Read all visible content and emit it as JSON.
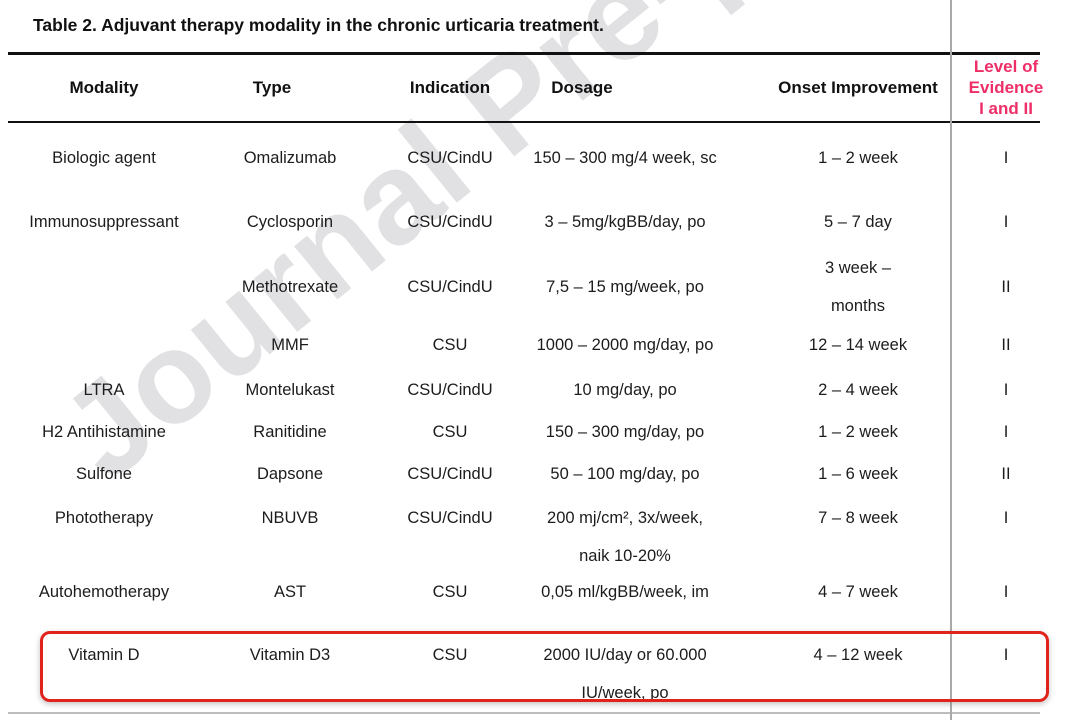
{
  "title": "Table 2. Adjuvant therapy modality in the chronic urticaria treatment.",
  "watermark": "Journal Pre-proof",
  "colors": {
    "accent_pink": "#EE2E67",
    "highlight_red": "#E0241B",
    "divider_gray": "#A9A9A9",
    "rule_black": "#111111",
    "watermark_gray": "#C9C9CE"
  },
  "columns": {
    "modality": "Modality",
    "type": "Type",
    "indication": "Indication",
    "dosage": "Dosage",
    "onset": "Onset Improvement",
    "evidence": "Level of\nEvidence\nI and II"
  },
  "rows": [
    {
      "modality": "Biologic agent",
      "type": "Omalizumab",
      "indication": "CSU/CindU",
      "dosage": "150 – 300 mg/4 week, sc",
      "onset": "1 – 2 week",
      "evidence": "I"
    },
    {
      "modality": "Immunosuppressant",
      "type": "Cyclosporin",
      "indication": "CSU/CindU",
      "dosage": "3 – 5mg/kgBB/day, po",
      "onset": "5 – 7 day",
      "evidence": "I"
    },
    {
      "modality": "",
      "type": "Methotrexate",
      "indication": "CSU/CindU",
      "dosage": "7,5 – 15 mg/week, po",
      "onset": "3 week –\nmonths",
      "evidence": "II"
    },
    {
      "modality": "",
      "type": "MMF",
      "indication": "CSU",
      "dosage": "1000 – 2000 mg/day, po",
      "onset": "12 – 14 week",
      "evidence": "II"
    },
    {
      "modality": "LTRA",
      "type": "Montelukast",
      "indication": "CSU/CindU",
      "dosage": "10 mg/day, po",
      "onset": "2 – 4 week",
      "evidence": "I"
    },
    {
      "modality": "H2 Antihistamine",
      "type": "Ranitidine",
      "indication": "CSU",
      "dosage": "150 – 300 mg/day, po",
      "onset": "1 – 2 week",
      "evidence": "I"
    },
    {
      "modality": "Sulfone",
      "type": "Dapsone",
      "indication": "CSU/CindU",
      "dosage": "50 – 100 mg/day, po",
      "onset": "1 – 6 week",
      "evidence": "II"
    },
    {
      "modality": "Phototherapy",
      "type": "NBUVB",
      "indication": "CSU/CindU",
      "dosage": "200 mj/cm², 3x/week,\nnaik 10-20%",
      "onset": "7 – 8 week",
      "evidence": "I"
    },
    {
      "modality": "Autohemotherapy",
      "type": "AST",
      "indication": "CSU",
      "dosage": "0,05 ml/kgBB/week, im",
      "onset": "4 – 7 week",
      "evidence": "I"
    },
    {
      "modality": "Vitamin D",
      "type": "Vitamin D3",
      "indication": "CSU",
      "dosage": "2000 IU/day or 60.000\nIU/week, po",
      "onset": "4 – 12 week",
      "evidence": "I"
    }
  ]
}
